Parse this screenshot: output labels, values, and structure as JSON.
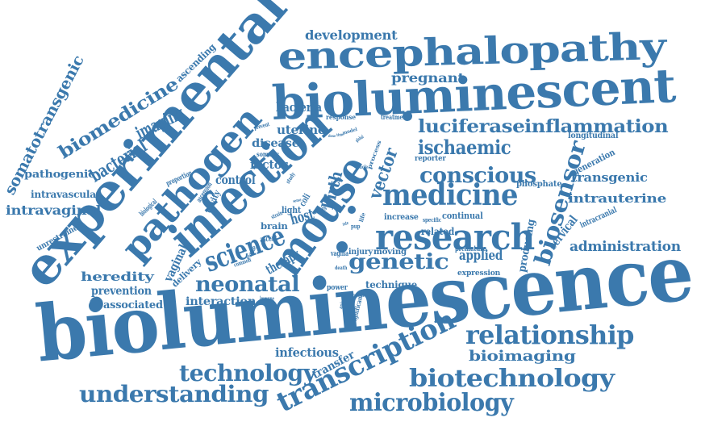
{
  "colors": {
    "ink": "#3b79ad",
    "background": "#ffffff"
  },
  "words": [
    "bioluminescence",
    "bioluminescent",
    "encephalopathy",
    "experimental",
    "infection",
    "mouse",
    "pathogen",
    "research",
    "medicine",
    "science",
    "relationship",
    "transcription",
    "biotechnology",
    "microbiology",
    "understanding",
    "technology",
    "neonatal",
    "genetic",
    "conscious",
    "ischaemic",
    "luciferase",
    "inflammation",
    "biosensor",
    "biomedicine",
    "bacterial",
    "imaging",
    "somatotransgenic",
    "development",
    "pregnant",
    "vector",
    "birth",
    "host",
    "uterine",
    "bacteria",
    "disease",
    "factor",
    "control",
    "pathogenic",
    "intravaginal",
    "intravascular",
    "heredity",
    "prevention",
    "associated",
    "interaction",
    "vaginal",
    "delivery",
    "therapy",
    "applied",
    "administration",
    "transgenic",
    "intrauterine",
    "cervical",
    "generation",
    "producing",
    "infectious",
    "transfer",
    "bioimaging",
    "technique",
    "continual",
    "brain",
    "light",
    "increase",
    "moving",
    "injury",
    "vagina",
    "ascent",
    "cavity",
    "ascending",
    "unrestrained",
    "biological",
    "proportion",
    "ascension",
    "intracranial",
    "longitudinal",
    "reporter",
    "phosphate",
    "related",
    "virus",
    "coli",
    "response",
    "treatment",
    "somatic",
    "prevent",
    "expression",
    "premature",
    "power",
    "immune",
    "evoke",
    "common",
    "significant",
    "study",
    "strain",
    "life",
    "death",
    "rodent",
    "whole",
    "model",
    "process",
    "specific",
    "global",
    "pup",
    "animal",
    "rate",
    "dose",
    "sense",
    "time"
  ]
}
